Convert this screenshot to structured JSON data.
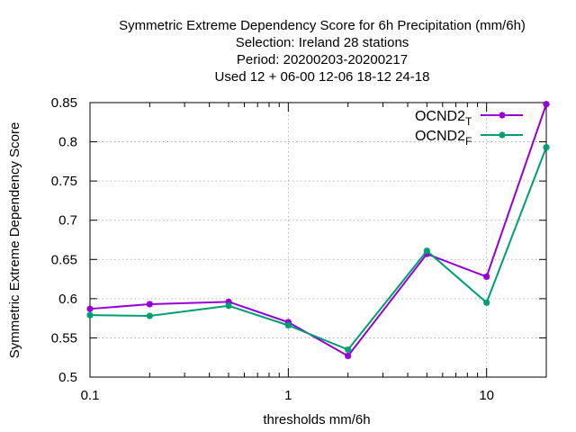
{
  "chart_data": {
    "type": "line",
    "title_lines": [
      "Symmetric Extreme Dependency Score  for 6h Precipitation (mm/6h)",
      "Selection: Ireland     28 stations",
      "Period: 20200203-20200217",
      "Used  12 + 06-00 12-06 18-12 24-18"
    ],
    "xlabel": "thresholds mm/6h",
    "ylabel": "Symmetric Extreme Dependency Score",
    "x_scale": "log",
    "xlim": [
      0.1,
      20
    ],
    "ylim": [
      0.5,
      0.85
    ],
    "x_ticks": [
      {
        "value": 0.1,
        "label": "0.1"
      },
      {
        "value": 1,
        "label": "1"
      },
      {
        "value": 10,
        "label": "10"
      }
    ],
    "y_ticks": [
      {
        "value": 0.5,
        "label": "0.5"
      },
      {
        "value": 0.55,
        "label": "0.55"
      },
      {
        "value": 0.6,
        "label": "0.6"
      },
      {
        "value": 0.65,
        "label": "0.65"
      },
      {
        "value": 0.7,
        "label": "0.7"
      },
      {
        "value": 0.75,
        "label": "0.75"
      },
      {
        "value": 0.8,
        "label": "0.8"
      },
      {
        "value": 0.85,
        "label": "0.85"
      }
    ],
    "grid": true,
    "legend_position": "top-right",
    "x": [
      0.1,
      0.2,
      0.5,
      1,
      2,
      5,
      10,
      20
    ],
    "series": [
      {
        "name": "OCND2",
        "subscript": "T",
        "color": "#9400d3",
        "values": [
          0.587,
          0.593,
          0.596,
          0.57,
          0.527,
          0.657,
          0.628,
          0.848
        ]
      },
      {
        "name": "OCND2",
        "subscript": "F",
        "color": "#009e73",
        "values": [
          0.579,
          0.578,
          0.591,
          0.566,
          0.535,
          0.661,
          0.595,
          0.793
        ]
      }
    ]
  }
}
